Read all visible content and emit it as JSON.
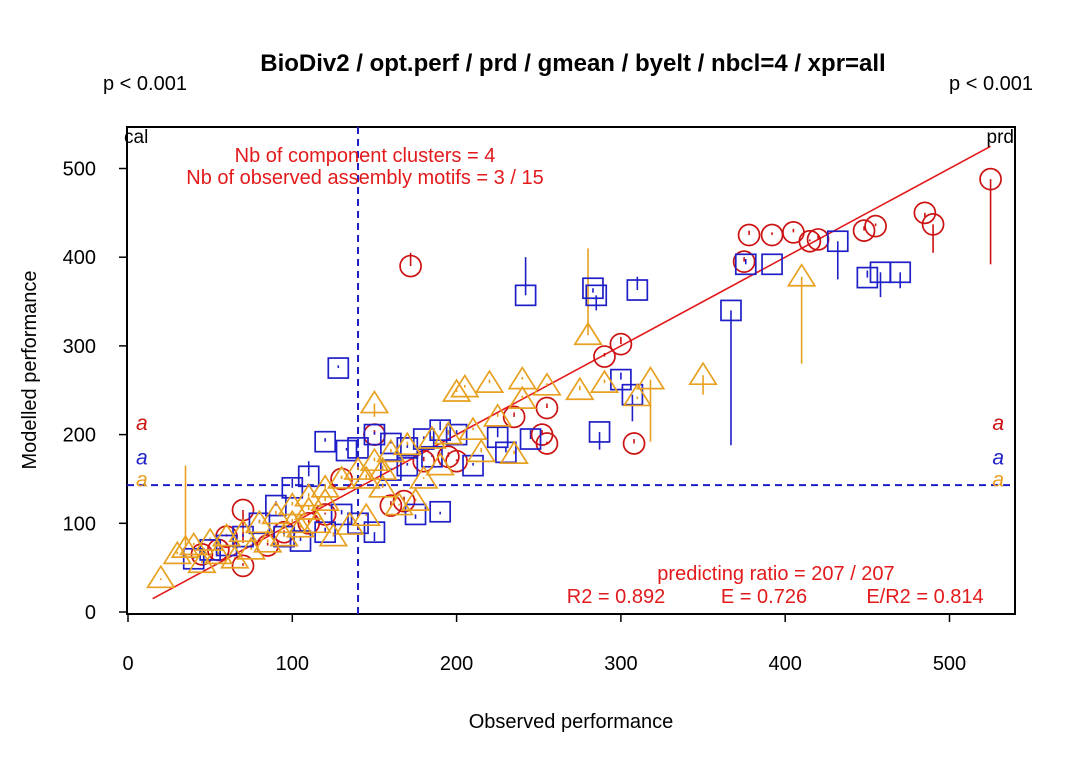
{
  "chart_data": {
    "type": "scatter",
    "title": "BioDiv2 / opt.perf / prd / gmean / byelt / nbcl=4 / xpr=all",
    "xlabel": "Observed performance",
    "ylabel": "Modelled performance",
    "xlim": [
      0,
      540
    ],
    "ylim": [
      0,
      540
    ],
    "xticks": [
      0,
      100,
      200,
      300,
      400,
      500
    ],
    "yticks": [
      0,
      100,
      200,
      300,
      400,
      500
    ],
    "pvalue_left": "p < 0.001",
    "pvalue_right": "p < 0.001",
    "corner_left": "cal",
    "corner_right": "prd",
    "annotation_clusters": "Nb of component clusters = 4",
    "annotation_motifs": "Nb of observed assembly motifs = 3 / 15",
    "predicting_ratio": "predicting ratio = 207 / 207",
    "stats": {
      "r2": "R2 = 0.892",
      "e": "E = 0.726",
      "er2": "E/R2 = 0.814"
    },
    "mean_x": 140,
    "mean_y": 143,
    "fit_line": {
      "x": [
        15,
        525
      ],
      "y": [
        15,
        525
      ],
      "color": "#e31a1c"
    },
    "letters": [
      {
        "text": "a",
        "color": "#cc1111",
        "y": 212
      },
      {
        "text": "a",
        "color": "#1f1fc8",
        "y": 173
      },
      {
        "text": "a",
        "color": "#e8a020",
        "y": 148
      }
    ],
    "series": [
      {
        "marker": "circle",
        "color": "#cc1111",
        "points": [
          [
            172,
            390,
            405
          ],
          [
            525,
            488,
            392
          ],
          [
            420,
            420,
            425
          ],
          [
            378,
            425,
            430
          ],
          [
            392,
            425,
            428
          ],
          [
            405,
            428,
            432
          ],
          [
            415,
            418,
            420
          ],
          [
            448,
            430,
            435
          ],
          [
            455,
            435,
            438
          ],
          [
            485,
            450,
            445
          ],
          [
            490,
            437,
            405
          ],
          [
            375,
            395,
            400
          ],
          [
            300,
            302,
            310
          ],
          [
            290,
            288,
            292
          ],
          [
            255,
            230,
            235
          ],
          [
            252,
            200,
            205
          ],
          [
            255,
            190,
            192
          ],
          [
            308,
            190,
            195
          ],
          [
            235,
            220,
            225
          ],
          [
            160,
            120,
            125
          ],
          [
            168,
            125,
            130
          ],
          [
            180,
            170,
            175
          ],
          [
            195,
            175,
            180
          ],
          [
            200,
            170,
            172
          ],
          [
            70,
            115,
            78
          ],
          [
            70,
            52,
            55
          ],
          [
            55,
            70,
            72
          ],
          [
            85,
            75,
            78
          ],
          [
            95,
            90,
            92
          ],
          [
            110,
            100,
            105
          ],
          [
            120,
            110,
            112
          ],
          [
            130,
            150,
            152
          ],
          [
            150,
            200,
            205
          ],
          [
            60,
            85,
            88
          ],
          [
            45,
            65,
            68
          ]
        ]
      },
      {
        "marker": "square",
        "color": "#1f1fc8",
        "points": [
          [
            128,
            275,
            278
          ],
          [
            242,
            357,
            400
          ],
          [
            283,
            365,
            360
          ],
          [
            285,
            357,
            340
          ],
          [
            310,
            363,
            378
          ],
          [
            367,
            340,
            188
          ],
          [
            376,
            392,
            398
          ],
          [
            392,
            392,
            392
          ],
          [
            432,
            418,
            375
          ],
          [
            450,
            377,
            385
          ],
          [
            458,
            383,
            355
          ],
          [
            470,
            383,
            365
          ],
          [
            287,
            203,
            183
          ],
          [
            307,
            245,
            215
          ],
          [
            300,
            262,
            270
          ],
          [
            245,
            195,
            205
          ],
          [
            225,
            197,
            210
          ],
          [
            200,
            200,
            205
          ],
          [
            190,
            205,
            215
          ],
          [
            180,
            195,
            198
          ],
          [
            170,
            185,
            190
          ],
          [
            160,
            190,
            193
          ],
          [
            150,
            200,
            203
          ],
          [
            140,
            185,
            190
          ],
          [
            133,
            182,
            185
          ],
          [
            120,
            192,
            196
          ],
          [
            110,
            153,
            170
          ],
          [
            90,
            120,
            125
          ],
          [
            100,
            140,
            150
          ],
          [
            80,
            100,
            104
          ],
          [
            70,
            85,
            88
          ],
          [
            60,
            75,
            78
          ],
          [
            50,
            70,
            72
          ],
          [
            40,
            60,
            62
          ],
          [
            190,
            113,
            110
          ],
          [
            175,
            110,
            105
          ],
          [
            150,
            90,
            80
          ],
          [
            140,
            100,
            95
          ],
          [
            160,
            160,
            162
          ],
          [
            170,
            165,
            168
          ],
          [
            185,
            175,
            178
          ],
          [
            210,
            165,
            168
          ],
          [
            230,
            180,
            185
          ],
          [
            95,
            85,
            90
          ],
          [
            105,
            80,
            85
          ],
          [
            120,
            90,
            95
          ],
          [
            130,
            110,
            115
          ]
        ]
      },
      {
        "marker": "triangle",
        "color": "#e8a020",
        "points": [
          [
            280,
            312,
            410
          ],
          [
            410,
            378,
            280
          ],
          [
            350,
            267,
            245
          ],
          [
            318,
            262,
            192
          ],
          [
            310,
            243,
            240
          ],
          [
            290,
            258,
            262
          ],
          [
            275,
            250,
            255
          ],
          [
            255,
            255,
            258
          ],
          [
            240,
            262,
            265
          ],
          [
            220,
            258,
            262
          ],
          [
            205,
            253,
            256
          ],
          [
            200,
            248,
            252
          ],
          [
            150,
            235,
            220
          ],
          [
            240,
            240,
            244
          ],
          [
            225,
            220,
            224
          ],
          [
            210,
            205,
            208
          ],
          [
            195,
            200,
            205
          ],
          [
            185,
            195,
            198
          ],
          [
            170,
            188,
            192
          ],
          [
            160,
            180,
            184
          ],
          [
            150,
            170,
            174
          ],
          [
            140,
            160,
            164
          ],
          [
            130,
            150,
            154
          ],
          [
            120,
            140,
            144
          ],
          [
            110,
            130,
            134
          ],
          [
            100,
            120,
            124
          ],
          [
            90,
            110,
            114
          ],
          [
            80,
            100,
            104
          ],
          [
            70,
            90,
            94
          ],
          [
            60,
            85,
            88
          ],
          [
            50,
            80,
            84
          ],
          [
            40,
            75,
            78
          ],
          [
            30,
            65,
            68
          ],
          [
            20,
            38,
            36
          ],
          [
            35,
            72,
            165
          ],
          [
            45,
            55,
            58
          ],
          [
            55,
            65,
            68
          ],
          [
            65,
            60,
            62
          ],
          [
            75,
            70,
            74
          ],
          [
            85,
            78,
            82
          ],
          [
            95,
            85,
            88
          ],
          [
            105,
            95,
            98
          ],
          [
            115,
            100,
            104
          ],
          [
            125,
            85,
            90
          ],
          [
            135,
            98,
            102
          ],
          [
            145,
            108,
            112
          ],
          [
            155,
            140,
            145
          ],
          [
            165,
            120,
            122
          ],
          [
            175,
            125,
            128
          ],
          [
            190,
            165,
            168
          ],
          [
            215,
            180,
            185
          ],
          [
            235,
            178,
            182
          ],
          [
            180,
            150,
            152
          ],
          [
            145,
            150,
            155
          ],
          [
            155,
            160,
            165
          ],
          [
            110,
            115,
            120
          ],
          [
            120,
            125,
            130
          ],
          [
            100,
            100,
            105
          ]
        ]
      }
    ]
  }
}
